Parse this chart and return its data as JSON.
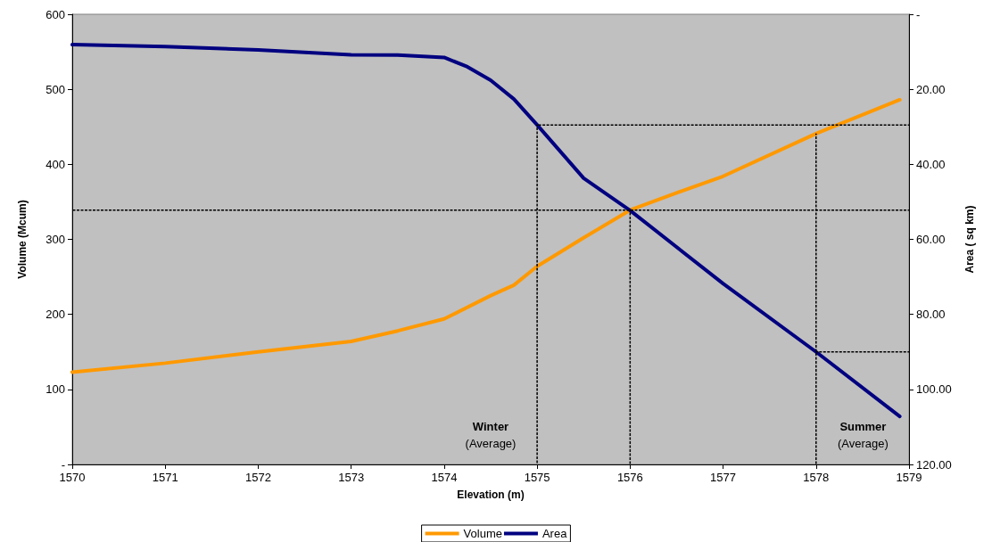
{
  "chart_data": {
    "type": "line",
    "xlabel": "Elevation (m)",
    "ylabel": "Volume (Mcum)",
    "y2label": "Area ( sq km)",
    "xlim": [
      1570,
      1579
    ],
    "xticks": [
      1570,
      1571,
      1572,
      1573,
      1574,
      1575,
      1576,
      1577,
      1578,
      1579
    ],
    "ylim": [
      0,
      600
    ],
    "yticks": [
      {
        "value": 0,
        "label": "-"
      },
      100,
      200,
      300,
      400,
      500,
      600
    ],
    "y2lim": [
      120,
      0
    ],
    "y2ticks": [
      {
        "value": 0,
        "label": "-"
      },
      {
        "value": 20,
        "label": "20.00"
      },
      {
        "value": 40,
        "label": "40.00"
      },
      {
        "value": 60,
        "label": "60.00"
      },
      {
        "value": 80,
        "label": "80.00"
      },
      {
        "value": 100,
        "label": "100.00"
      },
      {
        "value": 120,
        "label": "120.00"
      }
    ],
    "grid": false,
    "legend": "bottom",
    "marker": "none",
    "annotations": [
      "Winter\n(Average)",
      "Summer\n(Average)"
    ],
    "series": [
      {
        "name": "Volume",
        "color": "#ff9900",
        "x": [
          1570,
          1571,
          1572,
          1573,
          1573.5,
          1574,
          1574.5,
          1574.75,
          1575,
          1575.5,
          1576,
          1576.5,
          1577,
          1578,
          1578.9
        ],
        "values": [
          123,
          135,
          150,
          164,
          178,
          194,
          225,
          239,
          264,
          302,
          339,
          362,
          384,
          441,
          486
        ]
      },
      {
        "name": "Area",
        "color": "#000080",
        "axis": "y2",
        "x": [
          1570,
          1571,
          1572,
          1573,
          1573.5,
          1574,
          1574.25,
          1574.5,
          1574.75,
          1575,
          1575.5,
          1576,
          1577,
          1578,
          1578.9
        ],
        "values": [
          8.1,
          8.6,
          9.5,
          10.8,
          10.9,
          11.5,
          14,
          17.6,
          22.6,
          29.5,
          43.7,
          52.3,
          71.8,
          90,
          107.2
        ]
      },
      {
        "color": "#000000",
        "line_style": "dashed",
        "x": [
          1570,
          1579
        ],
        "values": [
          339,
          339
        ]
      },
      {
        "color": "#000000",
        "line_style": "dashed",
        "x": [
          1575,
          1575
        ],
        "values": [
          0,
          453
        ]
      },
      {
        "color": "#000000",
        "line_style": "dashed",
        "axis": "y2",
        "x": [
          1575,
          1579
        ],
        "values": [
          29.5,
          29.5
        ]
      },
      {
        "color": "#000000",
        "line_style": "dashed",
        "x": [
          1576,
          1576
        ],
        "values": [
          0,
          339
        ]
      },
      {
        "color": "#000000",
        "line_style": "dashed",
        "x": [
          1578,
          1578
        ],
        "values": [
          0,
          441
        ]
      },
      {
        "color": "#000000",
        "line_style": "dashed",
        "axis": "y2",
        "x": [
          1578,
          1579
        ],
        "values": [
          90,
          90
        ]
      }
    ]
  }
}
